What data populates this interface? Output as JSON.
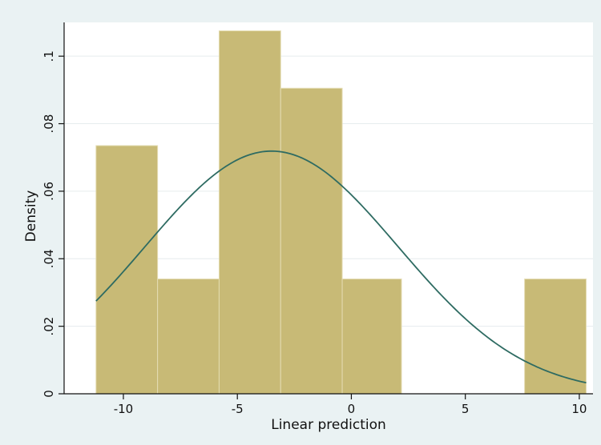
{
  "chart_data": {
    "type": "histogram",
    "title": "",
    "xlabel": "Linear prediction",
    "ylabel": "Density",
    "xlim": [
      -12.6,
      10.6
    ],
    "ylim": [
      0,
      0.11
    ],
    "x_ticks": [
      -10,
      -5,
      0,
      5,
      10
    ],
    "x_tick_labels": [
      "-10",
      "-5",
      "0",
      "5",
      "10"
    ],
    "y_ticks": [
      0,
      0.02,
      0.04,
      0.06,
      0.08,
      0.1
    ],
    "y_tick_labels": [
      "0",
      ".02",
      ".04",
      ".06",
      ".08",
      ".1"
    ],
    "grid": "horizontal",
    "bins": [
      {
        "x0": -11.2,
        "x1": -8.5,
        "density": 0.0735
      },
      {
        "x0": -8.5,
        "x1": -5.8,
        "density": 0.034
      },
      {
        "x0": -5.8,
        "x1": -3.1,
        "density": 0.1075
      },
      {
        "x0": -3.1,
        "x1": -0.4,
        "density": 0.0905
      },
      {
        "x0": -0.4,
        "x1": 2.2,
        "density": 0.034
      },
      {
        "x0": 2.2,
        "x1": 4.9,
        "density": 0
      },
      {
        "x0": 4.9,
        "x1": 7.6,
        "density": 0
      },
      {
        "x0": 7.6,
        "x1": 10.3,
        "density": 0.034
      }
    ],
    "normal_curve": {
      "mean": -3.5,
      "sd": 5.55,
      "x_start": -11.2,
      "x_end": 10.3
    },
    "colors": {
      "background": "#eaf2f3",
      "plot_background": "#ffffff",
      "bar_fill": "#c8ba76",
      "bar_edge": "#e4dcb2",
      "curve": "#2e6b62",
      "grid": "#e6ecee",
      "axis": "#111111"
    }
  }
}
